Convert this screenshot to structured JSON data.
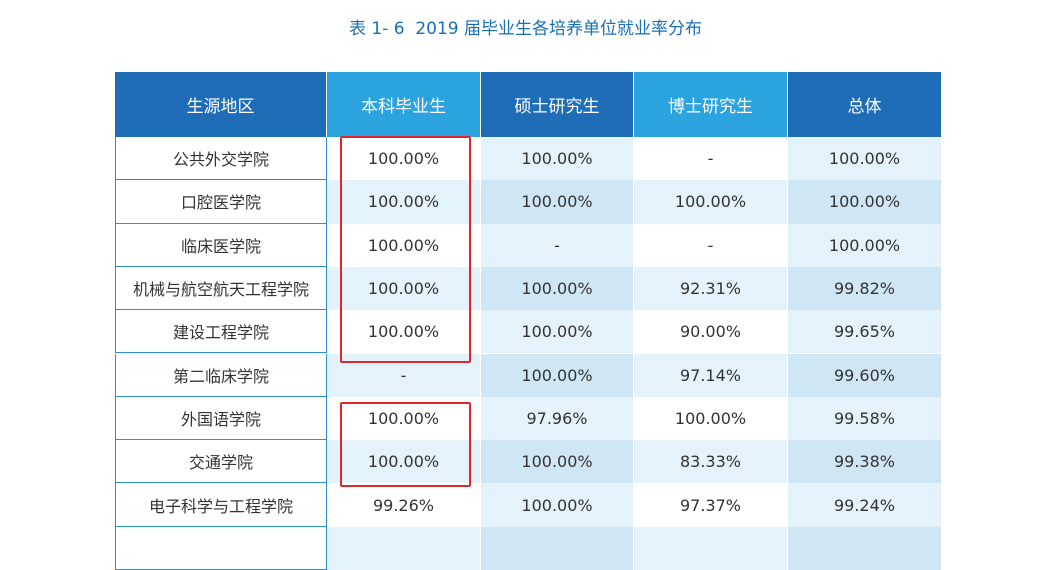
{
  "title": "表 1- 6  2019 届毕业生各培养单位就业率分布",
  "table": {
    "header": [
      "生源地区",
      "本科毕业生",
      "硕士研究生",
      "博士研究生",
      "总体"
    ],
    "rows": [
      [
        "公共外交学院",
        "100.00%",
        "100.00%",
        "-",
        "100.00%"
      ],
      [
        "口腔医学院",
        "100.00%",
        "100.00%",
        "100.00%",
        "100.00%"
      ],
      [
        "临床医学院",
        "100.00%",
        "-",
        "-",
        "100.00%"
      ],
      [
        "机械与航空航天工程学院",
        "100.00%",
        "100.00%",
        "92.31%",
        "99.82%"
      ],
      [
        "建设工程学院",
        "100.00%",
        "100.00%",
        "90.00%",
        "99.65%"
      ],
      [
        "第二临床学院",
        "-",
        "100.00%",
        "97.14%",
        "99.60%"
      ],
      [
        "外国语学院",
        "100.00%",
        "97.96%",
        "100.00%",
        "99.58%"
      ],
      [
        "交通学院",
        "100.00%",
        "100.00%",
        "83.33%",
        "99.38%"
      ],
      [
        "电子科学与工程学院",
        "99.26%",
        "100.00%",
        "97.37%",
        "99.24%"
      ]
    ]
  }
}
